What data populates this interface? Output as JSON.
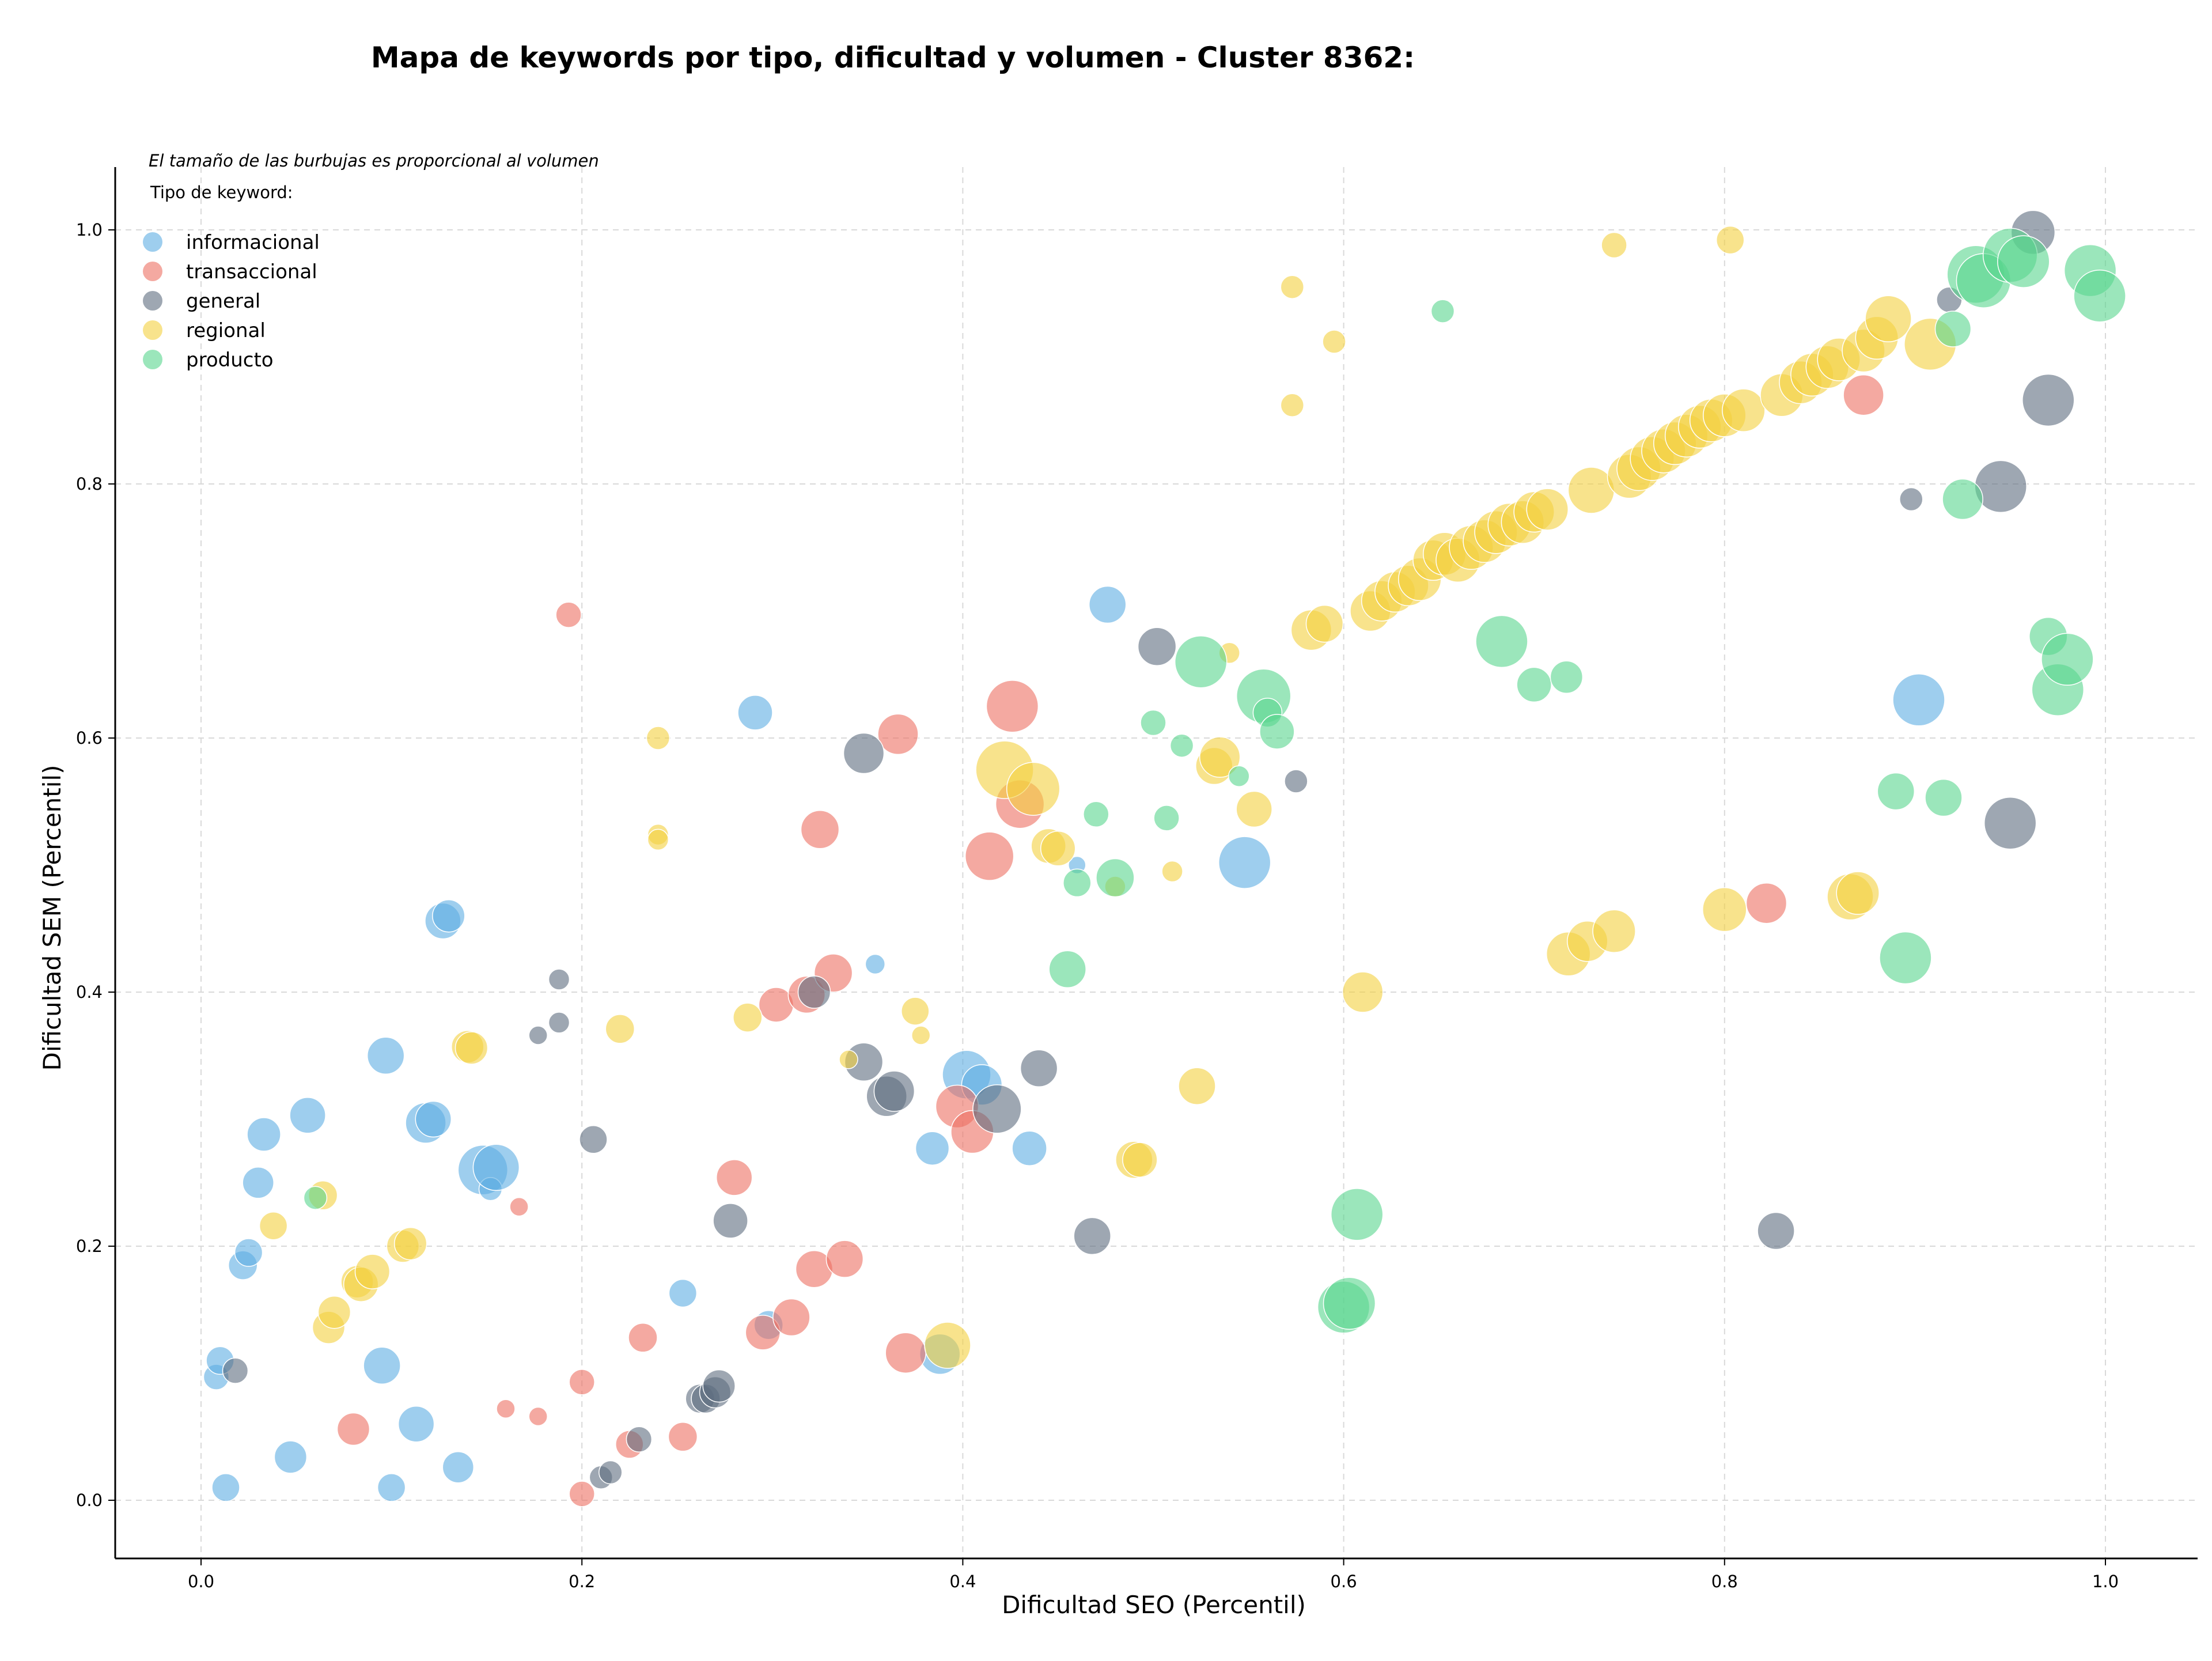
{
  "chart_data": {
    "type": "scatter",
    "title": "Mapa de keywords por tipo, dificultad y volumen - Cluster 8362:",
    "xlabel": "Dificultad SEO (Percentil)",
    "ylabel": "Dificultad SEM (Percentil)",
    "xlim": [
      -0.045,
      1.05
    ],
    "ylim": [
      -0.045,
      1.05
    ],
    "xticks": [
      "0.0",
      "0.2",
      "0.4",
      "0.6",
      "0.8",
      "1.0"
    ],
    "yticks": [
      "0.0",
      "0.2",
      "0.4",
      "0.6",
      "0.8",
      "1.0"
    ],
    "grid": true,
    "note": "El tamaño de las burbujas es proporcional al volumen",
    "legend_title": "Tipo de keyword:",
    "legend_position": "top-left",
    "series": [
      {
        "name": "informacional",
        "color": "#5DADE2",
        "points": [
          [
            0.008,
            0.097,
            22
          ],
          [
            0.01,
            0.11,
            24
          ],
          [
            0.013,
            0.01,
            24
          ],
          [
            0.022,
            0.185,
            25
          ],
          [
            0.025,
            0.195,
            24
          ],
          [
            0.03,
            0.25,
            27
          ],
          [
            0.033,
            0.288,
            29
          ],
          [
            0.047,
            0.034,
            28
          ],
          [
            0.056,
            0.303,
            31
          ],
          [
            0.095,
            0.106,
            32
          ],
          [
            0.097,
            0.35,
            32
          ],
          [
            0.1,
            0.01,
            24
          ],
          [
            0.113,
            0.06,
            31
          ],
          [
            0.118,
            0.297,
            35
          ],
          [
            0.122,
            0.3,
            31
          ],
          [
            0.127,
            0.456,
            31
          ],
          [
            0.13,
            0.46,
            28
          ],
          [
            0.135,
            0.026,
            27
          ],
          [
            0.148,
            0.26,
            43
          ],
          [
            0.152,
            0.245,
            20
          ],
          [
            0.155,
            0.262,
            40
          ],
          [
            0.253,
            0.163,
            24
          ],
          [
            0.291,
            0.62,
            30
          ],
          [
            0.298,
            0.138,
            25
          ],
          [
            0.354,
            0.422,
            17
          ],
          [
            0.384,
            0.277,
            29
          ],
          [
            0.388,
            0.115,
            35
          ],
          [
            0.402,
            0.335,
            42
          ],
          [
            0.41,
            0.327,
            35
          ],
          [
            0.435,
            0.277,
            30
          ],
          [
            0.46,
            0.5,
            15
          ],
          [
            0.476,
            0.705,
            32
          ],
          [
            0.548,
            0.502,
            45
          ],
          [
            0.902,
            0.63,
            45
          ]
        ]
      },
      {
        "name": "transaccional",
        "color": "#EC7063",
        "points": [
          [
            0.08,
            0.056,
            28
          ],
          [
            0.16,
            0.072,
            16
          ],
          [
            0.167,
            0.231,
            16
          ],
          [
            0.177,
            0.066,
            16
          ],
          [
            0.193,
            0.697,
            22
          ],
          [
            0.2,
            0.005,
            22
          ],
          [
            0.2,
            0.093,
            22
          ],
          [
            0.225,
            0.044,
            24
          ],
          [
            0.232,
            0.128,
            25
          ],
          [
            0.253,
            0.05,
            25
          ],
          [
            0.28,
            0.254,
            31
          ],
          [
            0.295,
            0.132,
            30
          ],
          [
            0.302,
            0.39,
            30
          ],
          [
            0.31,
            0.144,
            32
          ],
          [
            0.318,
            0.398,
            32
          ],
          [
            0.322,
            0.182,
            32
          ],
          [
            0.325,
            0.528,
            33
          ],
          [
            0.332,
            0.415,
            33
          ],
          [
            0.338,
            0.19,
            32
          ],
          [
            0.366,
            0.603,
            35
          ],
          [
            0.37,
            0.116,
            35
          ],
          [
            0.397,
            0.31,
            37
          ],
          [
            0.405,
            0.29,
            37
          ],
          [
            0.414,
            0.507,
            42
          ],
          [
            0.426,
            0.625,
            45
          ],
          [
            0.43,
            0.548,
            42
          ],
          [
            0.822,
            0.47,
            35
          ],
          [
            0.873,
            0.87,
            35
          ]
        ]
      },
      {
        "name": "general",
        "color": "#5D6D7E",
        "points": [
          [
            0.018,
            0.102,
            22
          ],
          [
            0.177,
            0.366,
            16
          ],
          [
            0.188,
            0.376,
            18
          ],
          [
            0.188,
            0.41,
            18
          ],
          [
            0.206,
            0.284,
            24
          ],
          [
            0.21,
            0.018,
            20
          ],
          [
            0.215,
            0.022,
            20
          ],
          [
            0.23,
            0.048,
            22
          ],
          [
            0.262,
            0.08,
            25
          ],
          [
            0.265,
            0.08,
            25
          ],
          [
            0.27,
            0.085,
            27
          ],
          [
            0.272,
            0.09,
            28
          ],
          [
            0.278,
            0.22,
            30
          ],
          [
            0.322,
            0.4,
            28
          ],
          [
            0.348,
            0.345,
            33
          ],
          [
            0.348,
            0.588,
            35
          ],
          [
            0.36,
            0.318,
            35
          ],
          [
            0.364,
            0.322,
            35
          ],
          [
            0.418,
            0.308,
            42
          ],
          [
            0.44,
            0.34,
            32
          ],
          [
            0.468,
            0.208,
            32
          ],
          [
            0.502,
            0.672,
            33
          ],
          [
            0.575,
            0.566,
            20
          ],
          [
            0.827,
            0.212,
            32
          ],
          [
            0.898,
            0.788,
            20
          ],
          [
            0.918,
            0.945,
            22
          ],
          [
            0.945,
            0.798,
            45
          ],
          [
            0.95,
            0.533,
            45
          ],
          [
            0.962,
            0.998,
            38
          ],
          [
            0.97,
            0.866,
            45
          ]
        ]
      },
      {
        "name": "regional",
        "color": "#F4D03F",
        "points": [
          [
            0.038,
            0.216,
            24
          ],
          [
            0.064,
            0.24,
            25
          ],
          [
            0.067,
            0.136,
            28
          ],
          [
            0.07,
            0.148,
            28
          ],
          [
            0.082,
            0.172,
            28
          ],
          [
            0.084,
            0.17,
            30
          ],
          [
            0.09,
            0.18,
            30
          ],
          [
            0.106,
            0.2,
            28
          ],
          [
            0.11,
            0.202,
            28
          ],
          [
            0.14,
            0.357,
            28
          ],
          [
            0.142,
            0.356,
            28
          ],
          [
            0.22,
            0.371,
            25
          ],
          [
            0.24,
            0.6,
            20
          ],
          [
            0.24,
            0.524,
            18
          ],
          [
            0.24,
            0.52,
            18
          ],
          [
            0.287,
            0.38,
            25
          ],
          [
            0.34,
            0.347,
            16
          ],
          [
            0.375,
            0.385,
            24
          ],
          [
            0.378,
            0.366,
            16
          ],
          [
            0.392,
            0.122,
            40
          ],
          [
            0.422,
            0.575,
            50
          ],
          [
            0.437,
            0.56,
            46
          ],
          [
            0.445,
            0.515,
            30
          ],
          [
            0.45,
            0.513,
            30
          ],
          [
            0.48,
            0.483,
            18
          ],
          [
            0.49,
            0.268,
            32
          ],
          [
            0.493,
            0.268,
            30
          ],
          [
            0.51,
            0.495,
            18
          ],
          [
            0.523,
            0.326,
            32
          ],
          [
            0.532,
            0.578,
            32
          ],
          [
            0.535,
            0.585,
            35
          ],
          [
            0.54,
            0.667,
            18
          ],
          [
            0.553,
            0.544,
            31
          ],
          [
            0.573,
            0.862,
            20
          ],
          [
            0.573,
            0.955,
            20
          ],
          [
            0.583,
            0.685,
            35
          ],
          [
            0.59,
            0.69,
            32
          ],
          [
            0.595,
            0.912,
            20
          ],
          [
            0.61,
            0.4,
            35
          ],
          [
            0.614,
            0.7,
            35
          ],
          [
            0.62,
            0.708,
            35
          ],
          [
            0.627,
            0.715,
            35
          ],
          [
            0.634,
            0.72,
            35
          ],
          [
            0.64,
            0.725,
            37
          ],
          [
            0.647,
            0.74,
            35
          ],
          [
            0.653,
            0.745,
            37
          ],
          [
            0.66,
            0.74,
            38
          ],
          [
            0.667,
            0.75,
            38
          ],
          [
            0.674,
            0.755,
            37
          ],
          [
            0.68,
            0.762,
            37
          ],
          [
            0.687,
            0.768,
            37
          ],
          [
            0.694,
            0.77,
            37
          ],
          [
            0.7,
            0.778,
            35
          ],
          [
            0.707,
            0.78,
            36
          ],
          [
            0.718,
            0.43,
            38
          ],
          [
            0.728,
            0.44,
            35
          ],
          [
            0.73,
            0.795,
            40
          ],
          [
            0.742,
            0.448,
            37
          ],
          [
            0.742,
            0.988,
            22
          ],
          [
            0.75,
            0.806,
            38
          ],
          [
            0.755,
            0.812,
            38
          ],
          [
            0.762,
            0.82,
            38
          ],
          [
            0.768,
            0.826,
            38
          ],
          [
            0.774,
            0.832,
            37
          ],
          [
            0.78,
            0.838,
            37
          ],
          [
            0.787,
            0.845,
            37
          ],
          [
            0.793,
            0.85,
            37
          ],
          [
            0.8,
            0.854,
            37
          ],
          [
            0.8,
            0.465,
            38
          ],
          [
            0.803,
            0.992,
            24
          ],
          [
            0.81,
            0.858,
            37
          ],
          [
            0.83,
            0.87,
            37
          ],
          [
            0.84,
            0.88,
            37
          ],
          [
            0.846,
            0.886,
            37
          ],
          [
            0.854,
            0.892,
            37
          ],
          [
            0.86,
            0.898,
            37
          ],
          [
            0.866,
            0.475,
            40
          ],
          [
            0.87,
            0.478,
            37
          ],
          [
            0.873,
            0.905,
            37
          ],
          [
            0.88,
            0.915,
            37
          ],
          [
            0.886,
            0.93,
            40
          ],
          [
            0.908,
            0.91,
            45
          ]
        ]
      },
      {
        "name": "producto",
        "color": "#58D68D",
        "points": [
          [
            0.06,
            0.238,
            20
          ],
          [
            0.46,
            0.486,
            24
          ],
          [
            0.455,
            0.418,
            32
          ],
          [
            0.47,
            0.54,
            22
          ],
          [
            0.48,
            0.49,
            33
          ],
          [
            0.5,
            0.612,
            22
          ],
          [
            0.507,
            0.537,
            22
          ],
          [
            0.515,
            0.594,
            20
          ],
          [
            0.525,
            0.66,
            45
          ],
          [
            0.545,
            0.57,
            18
          ],
          [
            0.558,
            0.633,
            47
          ],
          [
            0.56,
            0.62,
            25
          ],
          [
            0.565,
            0.605,
            30
          ],
          [
            0.6,
            0.152,
            45
          ],
          [
            0.603,
            0.155,
            45
          ],
          [
            0.607,
            0.225,
            45
          ],
          [
            0.652,
            0.936,
            20
          ],
          [
            0.683,
            0.676,
            45
          ],
          [
            0.7,
            0.642,
            30
          ],
          [
            0.717,
            0.648,
            28
          ],
          [
            0.89,
            0.558,
            32
          ],
          [
            0.895,
            0.427,
            45
          ],
          [
            0.915,
            0.553,
            32
          ],
          [
            0.92,
            0.922,
            31
          ],
          [
            0.925,
            0.788,
            35
          ],
          [
            0.932,
            0.965,
            50
          ],
          [
            0.936,
            0.96,
            47
          ],
          [
            0.95,
            0.98,
            47
          ],
          [
            0.957,
            0.975,
            45
          ],
          [
            0.97,
            0.68,
            33
          ],
          [
            0.975,
            0.638,
            45
          ],
          [
            0.98,
            0.662,
            45
          ],
          [
            0.992,
            0.968,
            45
          ],
          [
            0.997,
            0.948,
            45
          ]
        ]
      }
    ]
  }
}
